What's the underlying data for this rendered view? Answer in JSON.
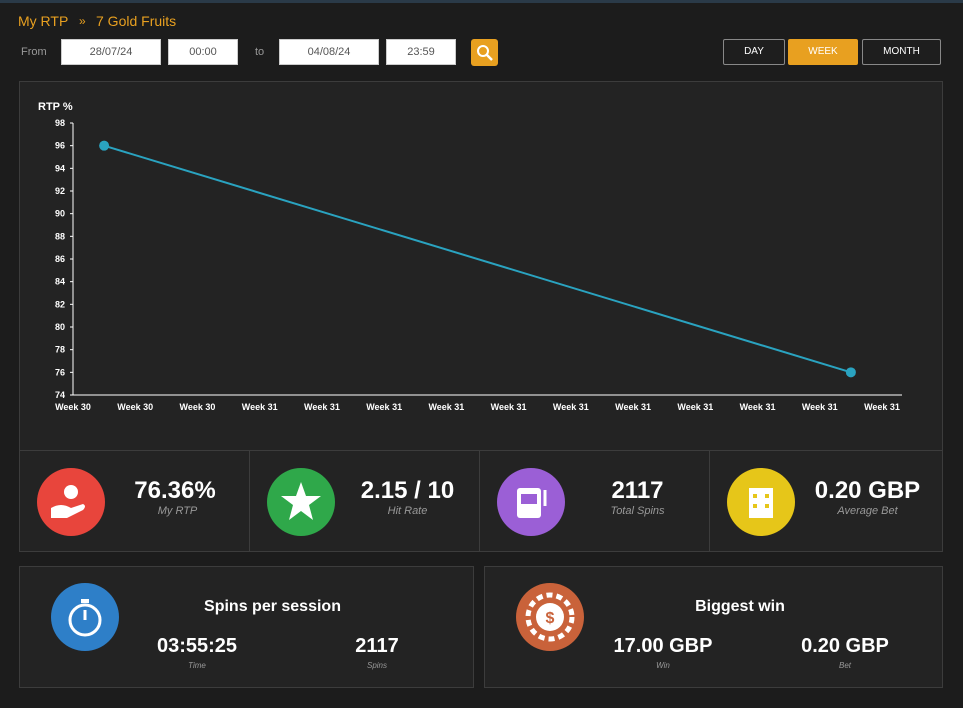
{
  "breadcrumb": {
    "root": "My RTP",
    "separator": "»",
    "current": "7 Gold Fruits"
  },
  "filters": {
    "from_label": "From",
    "from_date": "28/07/24",
    "from_time": "00:00",
    "to_label": "to",
    "to_date": "04/08/24",
    "to_time": "23:59"
  },
  "periods": [
    "DAY",
    "WEEK",
    "MONTH"
  ],
  "chart_data": {
    "type": "line",
    "ylabel": "RTP %",
    "categories": [
      "Week 30",
      "Week 30",
      "Week 30",
      "Week 31",
      "Week 31",
      "Week 31",
      "Week 31",
      "Week 31",
      "Week 31",
      "Week 31",
      "Week 31",
      "Week 31",
      "Week 31",
      "Week 31"
    ],
    "series": [
      {
        "name": "RTP",
        "color": "#2aa3c0",
        "values": [
          96,
          null,
          null,
          null,
          null,
          null,
          null,
          null,
          null,
          null,
          null,
          null,
          76,
          null
        ]
      }
    ],
    "ylim": [
      74,
      98
    ],
    "yticks": [
      74,
      76,
      78,
      80,
      82,
      84,
      86,
      88,
      90,
      92,
      94,
      96,
      98
    ]
  },
  "stats": [
    {
      "value": "76.36%",
      "label": "My RTP"
    },
    {
      "value": "2.15 / 10",
      "label": "Hit Rate"
    },
    {
      "value": "2117",
      "label": "Total Spins"
    },
    {
      "value": "0.20 GBP",
      "label": "Average Bet"
    }
  ],
  "sessions": {
    "title": "Spins per session",
    "time": "03:55:25",
    "time_label": "Time",
    "spins": "2117",
    "spins_label": "Spins"
  },
  "biggest": {
    "title": "Biggest win",
    "win": "17.00 GBP",
    "win_label": "Win",
    "bet": "0.20 GBP",
    "bet_label": "Bet"
  }
}
